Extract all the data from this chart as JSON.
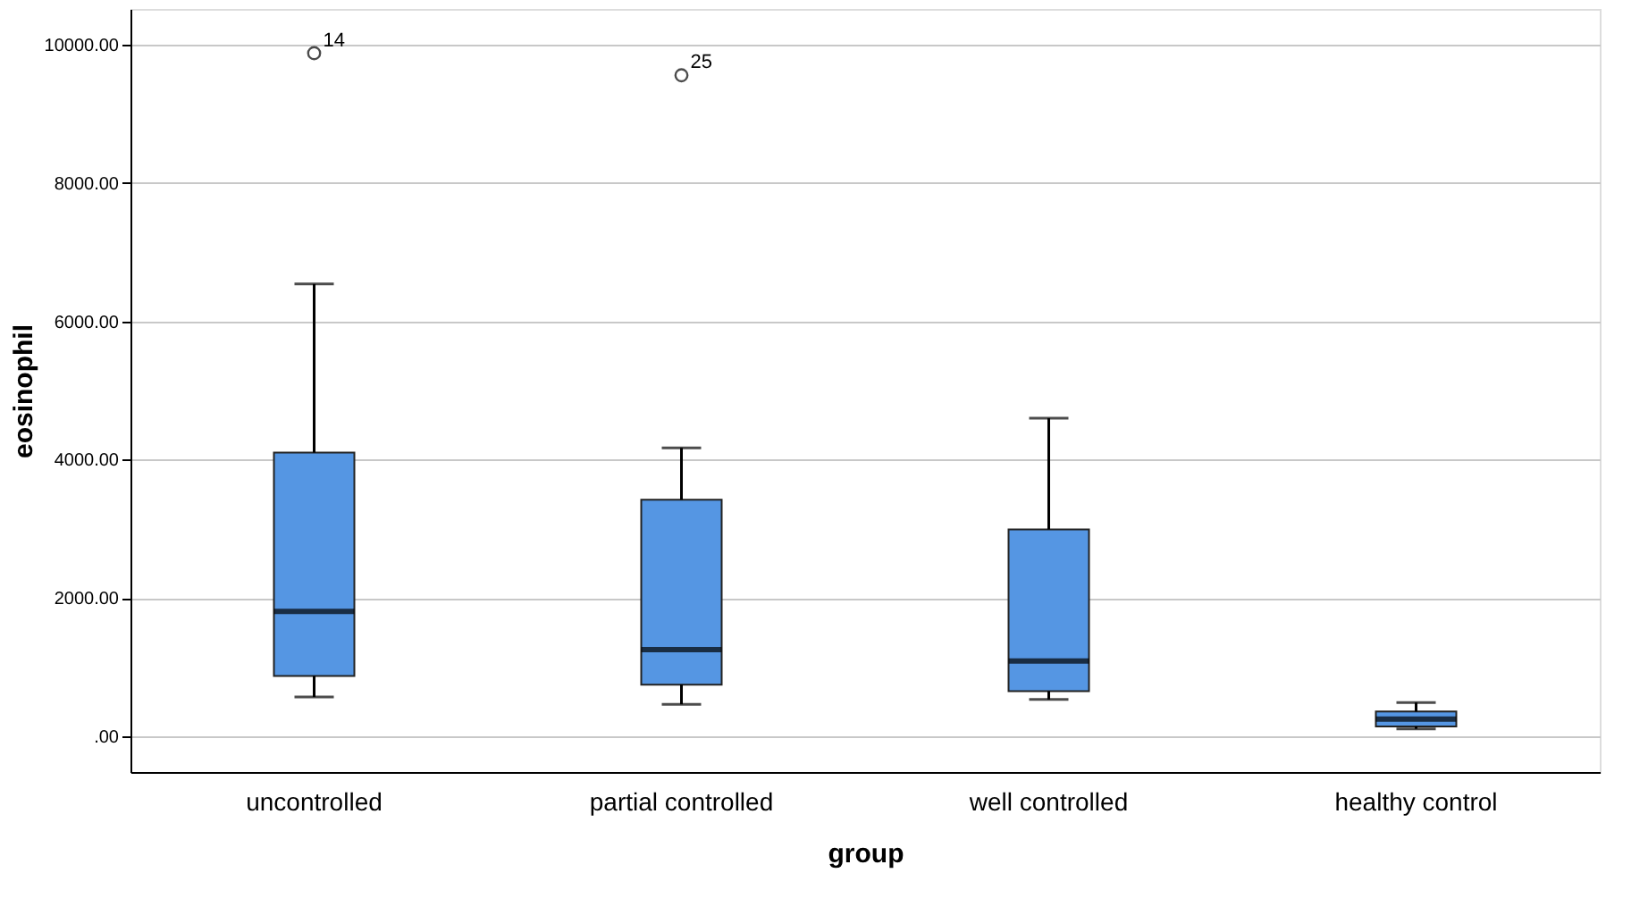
{
  "chart_data": {
    "type": "box",
    "xlabel": "group",
    "ylabel": "eosinophil",
    "categories": [
      "uncontrolled",
      "partial controlled",
      "well controlled",
      "healthy control"
    ],
    "boxes": [
      {
        "low": 565,
        "q1": 870,
        "median": 1805,
        "q3": 4100,
        "high": 6540,
        "outliers": [
          9880
        ]
      },
      {
        "low": 460,
        "q1": 745,
        "median": 1250,
        "q3": 3420,
        "high": 4170,
        "outliers": [
          9560
        ]
      },
      {
        "low": 530,
        "q1": 650,
        "median": 1085,
        "q3": 2990,
        "high": 4600
      },
      {
        "low": 105,
        "q1": 140,
        "median": 245,
        "q3": 355,
        "high": 485
      }
    ],
    "color": "#5596e3",
    "ylim": [
      -520,
      10520
    ],
    "yticks": [
      {
        "value": 0,
        "label": ".00"
      },
      {
        "value": 2000,
        "label": "2000.00"
      },
      {
        "value": 4000,
        "label": "4000.00"
      },
      {
        "value": 6000,
        "label": "6000.00"
      },
      {
        "value": 8000,
        "label": "8000.00"
      },
      {
        "value": 10000,
        "label": "10000.00"
      }
    ],
    "grid": "y",
    "annotations": [
      "14",
      "25"
    ]
  }
}
